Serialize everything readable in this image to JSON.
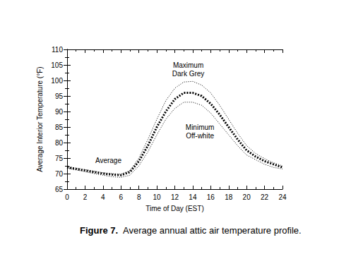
{
  "chart_data": {
    "type": "line",
    "title": "Figure 7.  Average annual attic air temperature profile.",
    "x_label": "Time of Day (EST)",
    "y_label": "Average Interior Temperature (°F)",
    "x": [
      0,
      1,
      2,
      3,
      4,
      5,
      6,
      7,
      8,
      9,
      10,
      11,
      12,
      13,
      14,
      15,
      16,
      17,
      18,
      19,
      20,
      21,
      22,
      23,
      24
    ],
    "series": [
      {
        "color": "#000000",
        "line_style": "dotted",
        "values": [
          72.3,
          71.8,
          71.3,
          70.8,
          70.3,
          70,
          69.8,
          71,
          75,
          81,
          87.5,
          93.5,
          97.5,
          99.5,
          99.7,
          98.5,
          96,
          92,
          87.5,
          83,
          79,
          76.5,
          74.8,
          73.5,
          72.5
        ]
      },
      {
        "color": "#000000",
        "line_style": "bold-dotted",
        "values": [
          72,
          71.5,
          71,
          70.5,
          70,
          69.7,
          69.5,
          70.5,
          74,
          79,
          85,
          90,
          94,
          96,
          96,
          95,
          92.5,
          89,
          85,
          81,
          77.5,
          75.5,
          74,
          73,
          72
        ]
      },
      {
        "color": "#000000",
        "line_style": "dotted",
        "values": [
          71.8,
          71.2,
          70.6,
          70,
          69.5,
          69,
          68.8,
          69.5,
          72.5,
          77,
          82.5,
          87.5,
          91,
          93,
          93,
          92,
          89.5,
          86,
          82.5,
          79,
          76,
          74.5,
          73,
          72,
          71.5
        ]
      }
    ],
    "annotations": [
      {
        "text": "Maximum\nDark Grey",
        "x": 13.5,
        "y": 103.5
      },
      {
        "text": "Minimum\nOff-white",
        "x": 14.8,
        "y": 83.5
      },
      {
        "text": "Average",
        "x": 4.6,
        "y": 74.2
      }
    ],
    "xlim": [
      0,
      24
    ],
    "xticks": [
      0,
      2,
      4,
      6,
      8,
      10,
      12,
      14,
      16,
      18,
      20,
      22,
      24
    ],
    "ylim": [
      65,
      110
    ],
    "yticks": [
      65,
      70,
      75,
      80,
      85,
      90,
      95,
      100,
      105,
      110
    ],
    "grid": false
  }
}
